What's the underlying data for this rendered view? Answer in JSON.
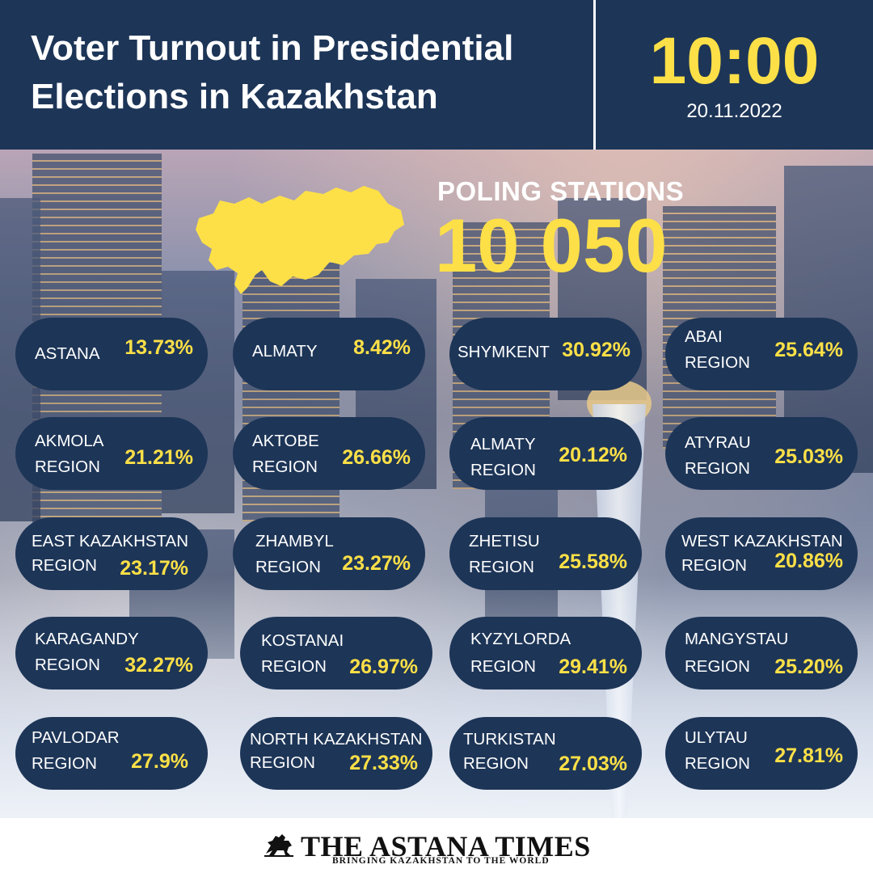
{
  "header": {
    "title_line1": "Voter Turnout in Presidential",
    "title_line2": "Elections in Kazakhstan",
    "time": "10:00",
    "date": "20.11.2022"
  },
  "stations": {
    "label": "POLING STATIONS",
    "value": "10 050"
  },
  "map": {
    "icon": "kazakhstan-map-icon",
    "color": "#fde047"
  },
  "colors": {
    "navy": "#1d3557",
    "accent": "#fde047",
    "text": "#ffffff"
  },
  "regions": [
    {
      "line1": "ASTANA",
      "line2": "",
      "pct": "13.73%"
    },
    {
      "line1": "ALMATY",
      "line2": "",
      "pct": "8.42%"
    },
    {
      "line1": "SHYMKENT",
      "line2": "",
      "pct": "30.92%"
    },
    {
      "line1": "ABAI",
      "line2": "REGION",
      "pct": "25.64%"
    },
    {
      "line1": "AKMOLA",
      "line2": "REGION",
      "pct": "21.21%"
    },
    {
      "line1": "AKTOBE",
      "line2": "REGION",
      "pct": "26.66%"
    },
    {
      "line1": "ALMATY",
      "line2": "REGION",
      "pct": "20.12%"
    },
    {
      "line1": "ATYRAU",
      "line2": "REGION",
      "pct": "25.03%"
    },
    {
      "line1": "EAST KAZAKHSTAN",
      "line2": "REGION",
      "pct": "23.17%"
    },
    {
      "line1": "ZHAMBYL",
      "line2": "REGION",
      "pct": "23.27%"
    },
    {
      "line1": "ZHETISU",
      "line2": "REGION",
      "pct": "25.58%"
    },
    {
      "line1": "WEST KAZAKHSTAN",
      "line2": "REGION",
      "pct": "20.86%"
    },
    {
      "line1": "KARAGANDY",
      "line2": "REGION",
      "pct": "32.27%"
    },
    {
      "line1": "KOSTANAI",
      "line2": "REGION",
      "pct": "26.97%"
    },
    {
      "line1": "KYZYLORDA",
      "line2": "REGION",
      "pct": "29.41%"
    },
    {
      "line1": "MANGYSTAU",
      "line2": "REGION",
      "pct": "25.20%"
    },
    {
      "line1": "PAVLODAR",
      "line2": "REGION",
      "pct": "27.9%"
    },
    {
      "line1": "NORTH KAZAKHSTAN",
      "line2": "REGION",
      "pct": "27.33%"
    },
    {
      "line1": "TURKISTAN",
      "line2": "REGION",
      "pct": "27.03%"
    },
    {
      "line1": "ULYTAU",
      "line2": "REGION",
      "pct": "27.81%"
    }
  ],
  "footer": {
    "brand": "THE ASTANA TIMES",
    "tagline": "BRINGING KAZAKHSTAN TO THE WORLD",
    "logo_icon": "horse-rider-logo-icon"
  }
}
